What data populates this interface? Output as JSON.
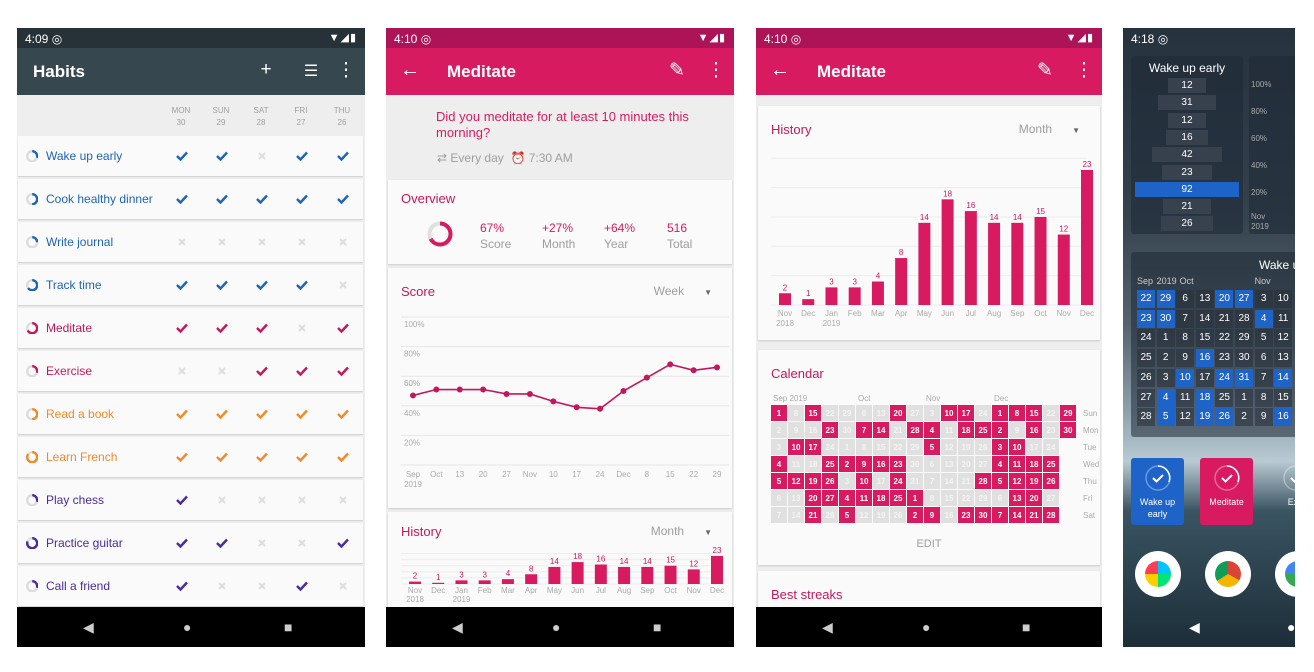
{
  "colors": {
    "blue": "#1e64b4",
    "pink": "#c2185b",
    "orange": "#ef8a2c",
    "purple": "#4a2a9c",
    "accent": "#d81b60",
    "status_dark": "#ad1457",
    "habits_appbar": "#37474f",
    "habits_status": "#263238",
    "widget_blue": "#1e64c8"
  },
  "phone1": {
    "time": "4:09",
    "title": "Habits",
    "icons": [
      "add-icon",
      "filter-icon",
      "more-vert-icon"
    ],
    "days": [
      {
        "d": "MON",
        "n": "30"
      },
      {
        "d": "SUN",
        "n": "29"
      },
      {
        "d": "SAT",
        "n": "28"
      },
      {
        "d": "FRI",
        "n": "27"
      },
      {
        "d": "THU",
        "n": "26"
      }
    ],
    "habits": [
      {
        "name": "Wake up early",
        "color": "blue",
        "score": 0.3,
        "checks": [
          1,
          1,
          0,
          1,
          1
        ]
      },
      {
        "name": "Cook healthy dinner",
        "color": "blue",
        "score": 0.5,
        "checks": [
          1,
          1,
          1,
          1,
          1
        ]
      },
      {
        "name": "Write journal",
        "color": "blue",
        "score": 0.25,
        "checks": [
          0,
          0,
          0,
          0,
          0
        ]
      },
      {
        "name": "Track time",
        "color": "blue",
        "score": 0.65,
        "checks": [
          1,
          1,
          1,
          1,
          0
        ]
      },
      {
        "name": "Meditate",
        "color": "pink",
        "score": 0.67,
        "checks": [
          1,
          1,
          1,
          0,
          1
        ]
      },
      {
        "name": "Exercise",
        "color": "pink",
        "score": 0.3,
        "checks": [
          0,
          0,
          1,
          1,
          1
        ]
      },
      {
        "name": "Read a book",
        "color": "orange",
        "score": 0.5,
        "checks": [
          1,
          1,
          1,
          1,
          1
        ]
      },
      {
        "name": "Learn French",
        "color": "orange",
        "score": 0.85,
        "checks": [
          1,
          1,
          1,
          1,
          1
        ]
      },
      {
        "name": "Play chess",
        "color": "purple",
        "score": 0.3,
        "checks": [
          1,
          0,
          0,
          0,
          0
        ]
      },
      {
        "name": "Practice guitar",
        "color": "purple",
        "score": 0.8,
        "checks": [
          1,
          1,
          0,
          0,
          1
        ]
      },
      {
        "name": "Call a friend",
        "color": "purple",
        "score": 0.3,
        "checks": [
          1,
          0,
          0,
          1,
          0
        ]
      }
    ]
  },
  "phone2": {
    "time": "4:10",
    "title": "Meditate",
    "question": "Did you meditate for at least 10 minutes this morning?",
    "frequency": "Every day",
    "reminder": "7:30 AM",
    "overview": {
      "title": "Overview",
      "score_fraction": 0.67,
      "stats": [
        {
          "value": "67%",
          "label": "Score"
        },
        {
          "value": "+27%",
          "label": "Month"
        },
        {
          "value": "+64%",
          "label": "Year"
        },
        {
          "value": "516",
          "label": "Total"
        }
      ]
    },
    "score_title": "Score",
    "score_period": "Week",
    "history_title": "History",
    "history_period": "Month"
  },
  "phone3": {
    "time": "4:10",
    "title": "Meditate",
    "history_title": "History",
    "history_period": "Month",
    "calendar_title": "Calendar",
    "edit_label": "EDIT",
    "best_streaks_title": "Best streaks"
  },
  "phone4": {
    "time": "4:18",
    "history_widget": {
      "title": "Wake up early",
      "values": [
        "12",
        "31",
        "12",
        "16",
        "42",
        "23",
        "92",
        "21",
        "26"
      ],
      "highlight_index": 6
    },
    "score_widget_ticks": [
      "100%",
      "80%",
      "60%",
      "40%",
      "20%"
    ],
    "score_widget_xlabel": [
      "Nov",
      "2019"
    ],
    "calendar_widget": {
      "title": "Wake up early",
      "months": [
        {
          "label": "Sep",
          "col": 0
        },
        {
          "label": "2019",
          "col": 1
        },
        {
          "label": "Oct",
          "col": 2
        },
        {
          "label": "Nov",
          "col": 6
        }
      ],
      "columns": [
        [
          22,
          23,
          24,
          25,
          26,
          27,
          28
        ],
        [
          29,
          30,
          1,
          2,
          3,
          4,
          5
        ],
        [
          6,
          7,
          8,
          9,
          10,
          11,
          12
        ],
        [
          13,
          14,
          15,
          16,
          17,
          18,
          19
        ],
        [
          20,
          21,
          22,
          23,
          24,
          25,
          26
        ],
        [
          27,
          28,
          29,
          30,
          31,
          1,
          2
        ],
        [
          3,
          4,
          5,
          6,
          7,
          8,
          9
        ],
        [
          10,
          11,
          12,
          13,
          14,
          15,
          16
        ]
      ],
      "checked": [
        [
          1,
          1,
          0,
          0,
          0,
          0,
          0
        ],
        [
          1,
          1,
          0,
          0,
          0,
          1,
          1
        ],
        [
          0,
          0,
          0,
          0,
          1,
          0,
          0
        ],
        [
          0,
          0,
          0,
          1,
          0,
          1,
          1
        ],
        [
          1,
          0,
          0,
          0,
          1,
          0,
          1
        ],
        [
          1,
          0,
          0,
          0,
          1,
          0,
          0
        ],
        [
          0,
          1,
          0,
          0,
          0,
          0,
          0
        ],
        [
          0,
          0,
          0,
          0,
          1,
          0,
          1
        ]
      ]
    },
    "habit_widgets": [
      {
        "label": "Wake up early",
        "color": "widget_blue"
      },
      {
        "label": "Meditate",
        "color": "accent"
      },
      {
        "label": "Exe"
      }
    ],
    "dock": [
      "play-store-icon",
      "chrome-icon",
      "photos-icon"
    ]
  },
  "chart_data": [
    {
      "type": "line",
      "title": "Score",
      "ylim": [
        0,
        100
      ],
      "yticks": [
        "100%",
        "80%",
        "60%",
        "40%",
        "20%"
      ],
      "x": [
        "Sep\n2019",
        "Oct",
        "13",
        "20",
        "27",
        "Nov",
        "10",
        "17",
        "24",
        "Dec",
        "8",
        "15",
        "22",
        "29"
      ],
      "values": [
        47,
        51,
        51,
        51,
        48,
        48,
        43,
        39,
        38,
        50,
        59,
        68,
        64,
        66
      ],
      "grid": true
    },
    {
      "type": "bar",
      "title": "History",
      "ylim": [
        0,
        25
      ],
      "categories": [
        "Nov\n2018",
        "Dec",
        "Jan\n2019",
        "Feb",
        "Mar",
        "Apr",
        "May",
        "Jun",
        "Jul",
        "Aug",
        "Sep",
        "Oct",
        "Nov",
        "Dec"
      ],
      "values": [
        2,
        1,
        3,
        3,
        4,
        8,
        14,
        18,
        16,
        14,
        14,
        15,
        12,
        23
      ],
      "grid": true
    },
    {
      "type": "heatmap",
      "title": "Calendar",
      "start": "2019-09-01",
      "end": "2019-12-30",
      "months": [
        {
          "label": "Sep 2019",
          "col": 0
        },
        {
          "label": "Oct",
          "col": 5
        },
        {
          "label": "Nov",
          "col": 9
        },
        {
          "label": "Dec",
          "col": 13
        }
      ],
      "weekdays": [
        "Sun",
        "Mon",
        "Tue",
        "Wed",
        "Thu",
        "Fri",
        "Sat"
      ],
      "checked": [
        "2019-09-01",
        "2019-09-15",
        "2019-10-20",
        "2019-11-10",
        "2019-11-17",
        "2019-12-01",
        "2019-12-08",
        "2019-12-15",
        "2019-12-29",
        "2019-09-23",
        "2019-10-07",
        "2019-10-14",
        "2019-10-28",
        "2019-11-04",
        "2019-11-18",
        "2019-11-25",
        "2019-12-02",
        "2019-12-16",
        "2019-12-30",
        "2019-09-10",
        "2019-09-17",
        "2019-11-05",
        "2019-12-03",
        "2019-12-10",
        "2019-09-04",
        "2019-09-25",
        "2019-10-02",
        "2019-10-09",
        "2019-10-16",
        "2019-10-23",
        "2019-12-04",
        "2019-12-11",
        "2019-12-18",
        "2019-12-25",
        "2019-09-05",
        "2019-09-12",
        "2019-09-19",
        "2019-09-26",
        "2019-10-10",
        "2019-10-24",
        "2019-11-28",
        "2019-12-05",
        "2019-12-12",
        "2019-12-19",
        "2019-12-26",
        "2019-09-20",
        "2019-09-27",
        "2019-10-04",
        "2019-10-11",
        "2019-10-18",
        "2019-10-25",
        "2019-11-01",
        "2019-12-13",
        "2019-12-20",
        "2019-09-21",
        "2019-10-05",
        "2019-11-02",
        "2019-11-09",
        "2019-11-23",
        "2019-11-30",
        "2019-12-07",
        "2019-12-14",
        "2019-12-21",
        "2019-12-28"
      ]
    }
  ]
}
